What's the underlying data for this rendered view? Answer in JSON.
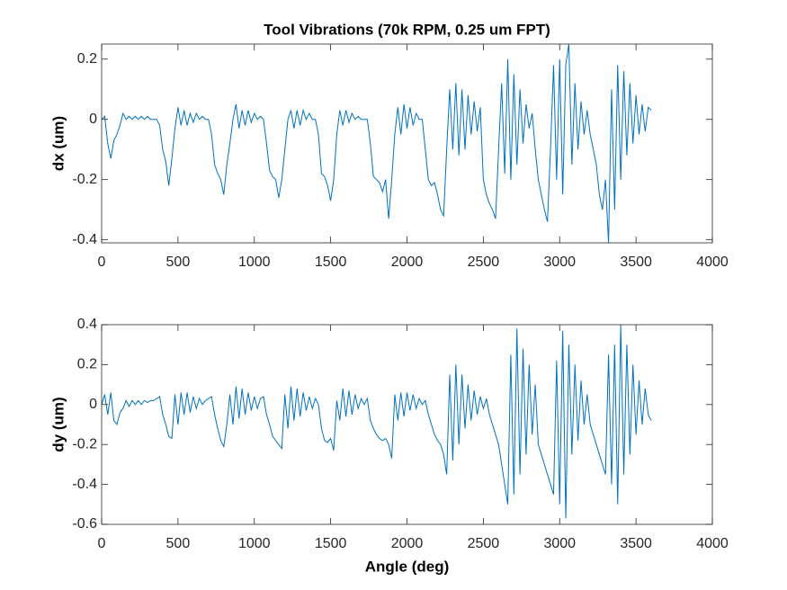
{
  "chart_data": [
    {
      "type": "line",
      "title": "Tool Vibrations (70k RPM, 0.25 um FPT)",
      "y_label": "dx (um)",
      "color": "#0072bd",
      "xlim": [
        0,
        4000
      ],
      "xticks": [
        0,
        500,
        1000,
        1500,
        2000,
        2500,
        3000,
        3500,
        4000
      ],
      "ylim": [
        -0.41,
        0.25
      ],
      "yticks": [
        -0.4,
        -0.2,
        0,
        0.2
      ],
      "x": [
        0,
        20,
        40,
        60,
        80,
        100,
        120,
        140,
        160,
        180,
        200,
        220,
        240,
        260,
        280,
        300,
        320,
        340,
        360,
        380,
        400,
        420,
        440,
        460,
        480,
        500,
        520,
        540,
        560,
        580,
        600,
        620,
        640,
        660,
        680,
        700,
        720,
        740,
        760,
        780,
        800,
        820,
        840,
        860,
        880,
        900,
        920,
        940,
        960,
        980,
        1000,
        1020,
        1040,
        1060,
        1080,
        1100,
        1120,
        1140,
        1160,
        1180,
        1200,
        1220,
        1240,
        1260,
        1280,
        1300,
        1320,
        1340,
        1360,
        1380,
        1400,
        1420,
        1440,
        1460,
        1480,
        1500,
        1520,
        1540,
        1560,
        1580,
        1600,
        1620,
        1640,
        1660,
        1680,
        1700,
        1720,
        1740,
        1760,
        1780,
        1800,
        1820,
        1840,
        1860,
        1880,
        1900,
        1920,
        1940,
        1960,
        1980,
        2000,
        2020,
        2040,
        2060,
        2080,
        2100,
        2120,
        2140,
        2160,
        2180,
        2200,
        2220,
        2240,
        2260,
        2280,
        2300,
        2320,
        2340,
        2360,
        2380,
        2400,
        2420,
        2440,
        2460,
        2480,
        2500,
        2520,
        2540,
        2560,
        2580,
        2600,
        2620,
        2640,
        2660,
        2680,
        2700,
        2720,
        2740,
        2760,
        2780,
        2800,
        2820,
        2840,
        2860,
        2880,
        2900,
        2920,
        2940,
        2960,
        2980,
        3000,
        3020,
        3040,
        3060,
        3080,
        3100,
        3120,
        3140,
        3160,
        3180,
        3200,
        3220,
        3240,
        3260,
        3280,
        3300,
        3320,
        3340,
        3360,
        3380,
        3400,
        3420,
        3440,
        3460,
        3480,
        3500,
        3520,
        3540,
        3560,
        3580,
        3600
      ],
      "values": [
        0,
        0.01,
        -0.08,
        -0.13,
        -0.07,
        -0.05,
        -0.02,
        0.02,
        0,
        0.01,
        0,
        0.01,
        0,
        0.01,
        0,
        0.01,
        0,
        0,
        0,
        -0.02,
        -0.1,
        -0.14,
        -0.22,
        -0.13,
        -0.03,
        0.04,
        -0.02,
        0.03,
        -0.02,
        0.02,
        -0.01,
        0.02,
        0,
        0.01,
        0,
        0,
        -0.05,
        -0.15,
        -0.18,
        -0.2,
        -0.25,
        -0.15,
        -0.08,
        0,
        0.05,
        -0.03,
        0.03,
        -0.02,
        0.03,
        -0.01,
        0.02,
        0,
        0.01,
        0,
        -0.08,
        -0.17,
        -0.19,
        -0.2,
        -0.26,
        -0.2,
        -0.1,
        0,
        0.03,
        -0.03,
        0.03,
        -0.02,
        0.03,
        0,
        0.02,
        0,
        0,
        -0.05,
        -0.18,
        -0.19,
        -0.22,
        -0.27,
        -0.2,
        -0.05,
        0.03,
        -0.02,
        0.03,
        -0.01,
        0.02,
        0,
        0.01,
        0,
        0,
        0,
        -0.08,
        -0.19,
        -0.2,
        -0.21,
        -0.24,
        -0.2,
        -0.33,
        -0.2,
        -0.05,
        0.04,
        -0.05,
        0.05,
        -0.03,
        0.04,
        -0.02,
        0.02,
        0,
        0,
        -0.1,
        -0.2,
        -0.22,
        -0.21,
        -0.25,
        -0.3,
        -0.32,
        -0.1,
        0.1,
        -0.1,
        0.12,
        -0.12,
        0.1,
        -0.1,
        0.08,
        -0.05,
        0.06,
        -0.04,
        0.04,
        -0.2,
        -0.25,
        -0.28,
        -0.3,
        -0.33,
        -0.1,
        0.12,
        -0.18,
        0.2,
        -0.2,
        0.15,
        -0.15,
        0.1,
        -0.08,
        0.05,
        -0.03,
        0.02,
        -0.1,
        -0.2,
        -0.25,
        -0.3,
        -0.34,
        -0.1,
        0.18,
        -0.2,
        0.2,
        -0.25,
        0.18,
        0.25,
        -0.15,
        0.12,
        -0.1,
        0.06,
        -0.05,
        0.03,
        -0.05,
        -0.1,
        -0.15,
        -0.25,
        -0.3,
        -0.2,
        -0.41,
        0.1,
        -0.3,
        0.18,
        -0.2,
        0.16,
        -0.12,
        0.12,
        -0.08,
        0.08,
        -0.05,
        0.05,
        -0.04,
        0.04,
        0.03
      ]
    },
    {
      "type": "line",
      "x_label": "Angle (deg)",
      "y_label": "dy (um)",
      "color": "#0072bd",
      "xlim": [
        0,
        4000
      ],
      "xticks": [
        0,
        500,
        1000,
        1500,
        2000,
        2500,
        3000,
        3500,
        4000
      ],
      "ylim": [
        -0.6,
        0.4
      ],
      "yticks": [
        -0.6,
        -0.4,
        -0.2,
        0,
        0.2,
        0.4
      ],
      "x": [
        0,
        20,
        40,
        60,
        80,
        100,
        120,
        140,
        160,
        180,
        200,
        220,
        240,
        260,
        280,
        300,
        320,
        340,
        360,
        380,
        400,
        420,
        440,
        460,
        480,
        500,
        520,
        540,
        560,
        580,
        600,
        620,
        640,
        660,
        680,
        700,
        720,
        740,
        760,
        780,
        800,
        820,
        840,
        860,
        880,
        900,
        920,
        940,
        960,
        980,
        1000,
        1020,
        1040,
        1060,
        1080,
        1100,
        1120,
        1140,
        1160,
        1180,
        1200,
        1220,
        1240,
        1260,
        1280,
        1300,
        1320,
        1340,
        1360,
        1380,
        1400,
        1420,
        1440,
        1460,
        1480,
        1500,
        1520,
        1540,
        1560,
        1580,
        1600,
        1620,
        1640,
        1660,
        1680,
        1700,
        1720,
        1740,
        1760,
        1780,
        1800,
        1820,
        1840,
        1860,
        1880,
        1900,
        1920,
        1940,
        1960,
        1980,
        2000,
        2020,
        2040,
        2060,
        2080,
        2100,
        2120,
        2140,
        2160,
        2180,
        2200,
        2220,
        2240,
        2260,
        2280,
        2300,
        2320,
        2340,
        2360,
        2380,
        2400,
        2420,
        2440,
        2460,
        2480,
        2500,
        2520,
        2540,
        2560,
        2580,
        2600,
        2620,
        2640,
        2660,
        2680,
        2700,
        2720,
        2740,
        2760,
        2780,
        2800,
        2820,
        2840,
        2860,
        2880,
        2900,
        2920,
        2940,
        2960,
        2980,
        3000,
        3020,
        3040,
        3060,
        3080,
        3100,
        3120,
        3140,
        3160,
        3180,
        3200,
        3220,
        3240,
        3260,
        3280,
        3300,
        3320,
        3340,
        3360,
        3380,
        3400,
        3420,
        3440,
        3460,
        3480,
        3500,
        3520,
        3540,
        3560,
        3580,
        3600
      ],
      "values": [
        0,
        0.05,
        -0.05,
        0.06,
        -0.08,
        -0.1,
        -0.04,
        -0.02,
        0.02,
        -0.01,
        0.02,
        0,
        0.02,
        0,
        0.02,
        0.01,
        0.02,
        0.02,
        0.03,
        0.04,
        -0.05,
        -0.1,
        -0.16,
        -0.17,
        0.05,
        -0.1,
        0.06,
        -0.05,
        0.06,
        -0.04,
        0.04,
        -0.02,
        0.03,
        0,
        0.02,
        0.03,
        0.04,
        -0.05,
        -0.12,
        -0.18,
        -0.21,
        -0.1,
        0.05,
        -0.1,
        0.09,
        -0.07,
        0.08,
        -0.05,
        0.06,
        -0.03,
        0.04,
        -0.02,
        0.03,
        0.04,
        -0.05,
        -0.1,
        -0.16,
        -0.18,
        -0.2,
        -0.22,
        0.05,
        -0.12,
        0.09,
        -0.08,
        0.08,
        -0.06,
        0.06,
        -0.03,
        0.04,
        -0.02,
        0.03,
        0,
        -0.12,
        -0.18,
        -0.19,
        -0.17,
        -0.23,
        0.02,
        -0.08,
        0.08,
        -0.06,
        0.07,
        -0.05,
        0.05,
        -0.02,
        0.03,
        0,
        0.03,
        -0.08,
        -0.12,
        -0.15,
        -0.17,
        -0.18,
        -0.17,
        -0.2,
        -0.27,
        0.05,
        -0.08,
        0.06,
        -0.06,
        0.06,
        -0.03,
        0.05,
        -0.02,
        0.03,
        0,
        0.02,
        -0.05,
        -0.1,
        -0.15,
        -0.18,
        -0.2,
        -0.25,
        -0.35,
        0.15,
        -0.28,
        0.2,
        -0.2,
        0.15,
        -0.12,
        0.1,
        -0.08,
        0.07,
        -0.05,
        0.04,
        -0.02,
        0.03,
        -0.05,
        -0.1,
        -0.15,
        -0.2,
        -0.3,
        -0.4,
        -0.5,
        0.25,
        -0.45,
        0.38,
        -0.35,
        0.28,
        -0.25,
        0.2,
        -0.15,
        0.1,
        -0.2,
        -0.25,
        -0.3,
        -0.35,
        -0.4,
        -0.45,
        0.22,
        -0.5,
        0.37,
        -0.57,
        0.3,
        -0.25,
        0.2,
        -0.18,
        0.12,
        -0.1,
        0.05,
        -0.1,
        -0.15,
        -0.2,
        -0.25,
        -0.3,
        -0.35,
        0.25,
        -0.4,
        0.3,
        -0.5,
        0.4,
        -0.35,
        0.3,
        -0.25,
        0.2,
        -0.15,
        0.12,
        -0.1,
        0.08,
        -0.05,
        -0.08
      ]
    }
  ]
}
